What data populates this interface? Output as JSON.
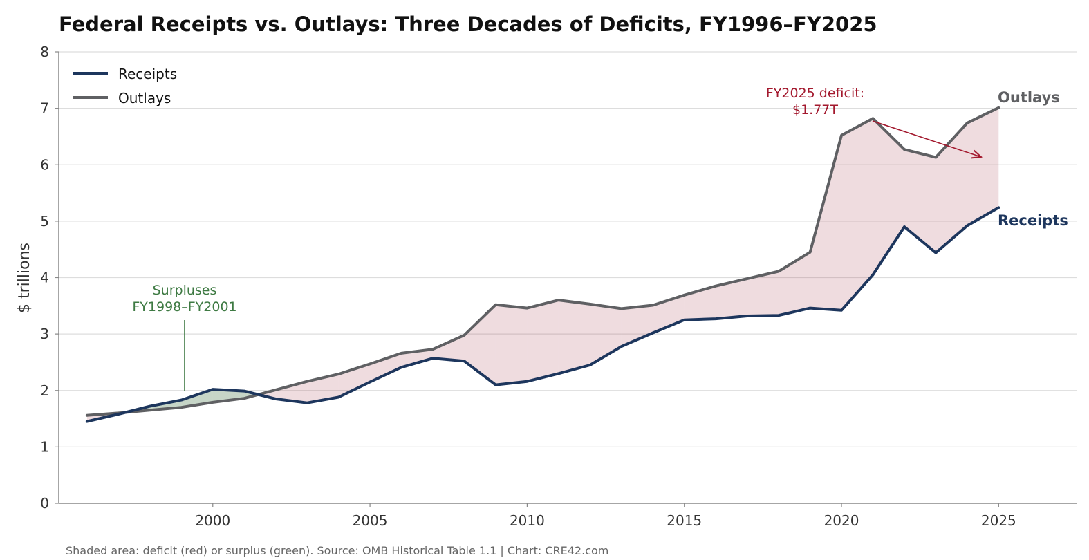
{
  "colors": {
    "receipts": "#1d365d",
    "outlays": "#5f6063",
    "deficit_fill": "#b0525e",
    "surplus_fill": "#4e7d52",
    "deficit_annot": "#a3192e",
    "surplus_annot": "#3e7a43",
    "grid": "#dddddd"
  },
  "chart_data": {
    "type": "line",
    "title": "Federal Receipts vs. Outlays: Three Decades of Deficits, FY1996–FY2025",
    "xlabel": "",
    "ylabel": "$ trillions",
    "x": [
      1996,
      1997,
      1998,
      1999,
      2000,
      2001,
      2002,
      2003,
      2004,
      2005,
      2006,
      2007,
      2008,
      2009,
      2010,
      2011,
      2012,
      2013,
      2014,
      2015,
      2016,
      2017,
      2018,
      2019,
      2020,
      2021,
      2022,
      2023,
      2024,
      2025
    ],
    "series": [
      {
        "name": "Receipts",
        "values": [
          1.45,
          1.58,
          1.72,
          1.83,
          2.02,
          1.99,
          1.85,
          1.78,
          1.88,
          2.15,
          2.41,
          2.57,
          2.52,
          2.1,
          2.16,
          2.3,
          2.45,
          2.78,
          3.02,
          3.25,
          3.27,
          3.32,
          3.33,
          3.46,
          3.42,
          4.05,
          4.9,
          4.44,
          4.92,
          5.24
        ]
      },
      {
        "name": "Outlays",
        "values": [
          1.56,
          1.6,
          1.65,
          1.7,
          1.79,
          1.86,
          2.01,
          2.16,
          2.29,
          2.47,
          2.66,
          2.73,
          2.98,
          3.52,
          3.46,
          3.6,
          3.53,
          3.45,
          3.51,
          3.69,
          3.85,
          3.98,
          4.11,
          4.45,
          6.52,
          6.82,
          6.27,
          6.13,
          6.74,
          7.01
        ]
      }
    ],
    "xlim": [
      1995.1,
      2027.5
    ],
    "ylim": [
      0,
      8
    ],
    "x_ticks": [
      2000,
      2005,
      2010,
      2015,
      2020,
      2025
    ],
    "y_ticks": [
      0,
      1,
      2,
      3,
      4,
      5,
      6,
      7,
      8
    ],
    "grid": "horizontal",
    "legend_position": "top-left",
    "end_labels": [
      "Outlays",
      "Receipts"
    ],
    "annotations": {
      "deficit_line1": "FY2025 deficit:",
      "deficit_line2": "$1.77T",
      "surplus_line1": "Surpluses",
      "surplus_line2": "FY1998–FY2001"
    },
    "source_note": "Shaded area: deficit (red) or surplus (green). Source: OMB Historical Table 1.1 | Chart: CRE42.com"
  }
}
